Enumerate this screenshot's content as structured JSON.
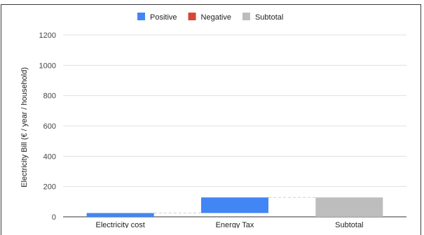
{
  "chart_data": {
    "type": "bar",
    "subtype": "waterfall",
    "ylabel": "Electricity Bill (€ / year / household)",
    "ylim": [
      0,
      1200
    ],
    "yticks": [
      0,
      200,
      400,
      600,
      800,
      1000,
      1200
    ],
    "grid": true,
    "legend_position": "top",
    "legend": [
      {
        "name": "Positive",
        "color": "#4285f4"
      },
      {
        "name": "Negative",
        "color": "#db4437"
      },
      {
        "name": "Subtotal",
        "color": "#bdbdbd"
      }
    ],
    "categories": [
      "Electricity cost",
      "Energy Tax",
      "Subtotal"
    ],
    "bars": [
      {
        "category": "Electricity cost",
        "kind": "Positive",
        "start": 0,
        "end": 25
      },
      {
        "category": "Energy Tax",
        "kind": "Positive",
        "start": 25,
        "end": 128
      },
      {
        "category": "Subtotal",
        "kind": "Subtotal",
        "start": 0,
        "end": 128
      }
    ]
  }
}
